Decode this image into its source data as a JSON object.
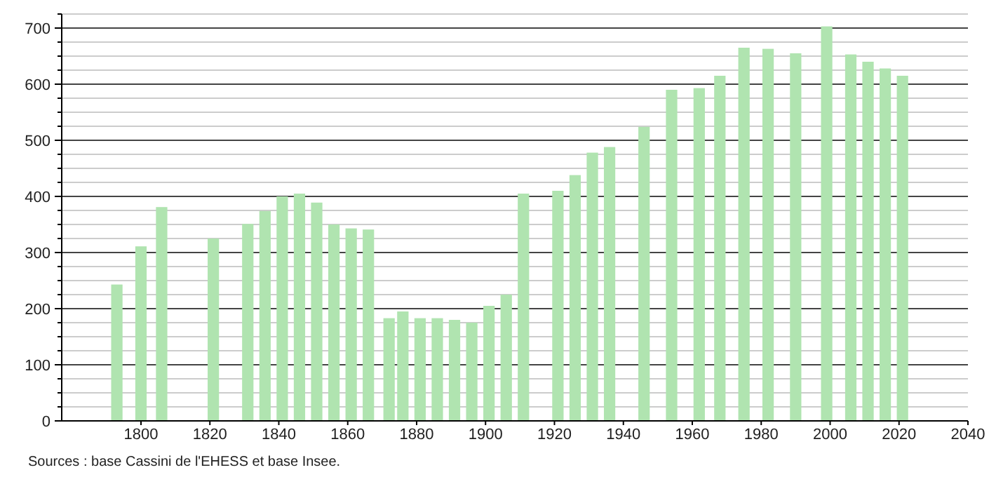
{
  "chart_data": {
    "type": "bar",
    "x": [
      1793,
      1800,
      1806,
      1821,
      1831,
      1836,
      1841,
      1846,
      1851,
      1856,
      1861,
      1866,
      1872,
      1876,
      1881,
      1886,
      1891,
      1896,
      1901,
      1906,
      1911,
      1921,
      1926,
      1931,
      1936,
      1946,
      1954,
      1962,
      1968,
      1975,
      1982,
      1990,
      1999,
      2006,
      2011,
      2016,
      2021
    ],
    "values": [
      243,
      311,
      381,
      325,
      351,
      374,
      400,
      405,
      389,
      350,
      343,
      341,
      183,
      195,
      183,
      183,
      180,
      175,
      205,
      225,
      405,
      410,
      438,
      478,
      488,
      524,
      590,
      593,
      615,
      665,
      663,
      655,
      703,
      653,
      640,
      628,
      615
    ],
    "color": "#b0e4b0",
    "xlim": [
      1777,
      2040
    ],
    "xticks": [
      1800,
      1820,
      1840,
      1860,
      1880,
      1900,
      1920,
      1940,
      1960,
      1980,
      2000,
      2020,
      2040
    ],
    "ylim": [
      0,
      725
    ],
    "yticks": [
      0,
      {
        "value": 25,
        "label": null
      },
      {
        "value": 50,
        "label": null
      },
      {
        "value": 75,
        "label": null
      },
      100,
      {
        "value": 125,
        "label": null
      },
      {
        "value": 150,
        "label": null
      },
      {
        "value": 175,
        "label": null
      },
      200,
      {
        "value": 225,
        "label": null
      },
      {
        "value": 250,
        "label": null
      },
      {
        "value": 275,
        "label": null
      },
      300,
      {
        "value": 325,
        "label": null
      },
      {
        "value": 350,
        "label": null
      },
      {
        "value": 375,
        "label": null
      },
      400,
      {
        "value": 425,
        "label": null
      },
      {
        "value": 450,
        "label": null
      },
      {
        "value": 475,
        "label": null
      },
      500,
      {
        "value": 525,
        "label": null
      },
      {
        "value": 550,
        "label": null
      },
      {
        "value": 575,
        "label": null
      },
      600,
      {
        "value": 625,
        "label": null
      },
      {
        "value": 650,
        "label": null
      },
      {
        "value": 675,
        "label": null
      },
      700,
      {
        "value": 725,
        "label": null
      }
    ],
    "grid": true,
    "annotations": [
      "Sources : base Cassini de l'EHESS et base Insee."
    ]
  }
}
